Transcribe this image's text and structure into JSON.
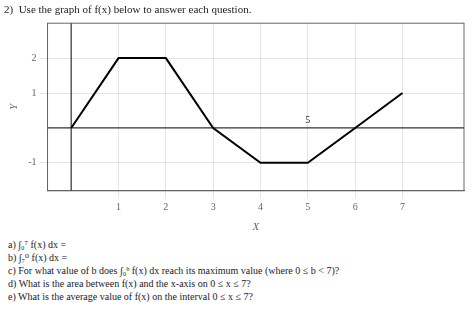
{
  "chart_data": {
    "type": "line",
    "title": "2)  Use the graph of f(x) below to answer each question.",
    "x": [
      0,
      1,
      2,
      3,
      4,
      5,
      6,
      7
    ],
    "values": [
      0,
      2,
      2,
      0,
      -1,
      -1,
      0,
      1
    ],
    "color": "#000000",
    "xlim": [
      -0.5,
      8.3
    ],
    "ylim": [
      -1.8,
      3.0
    ],
    "xticks": [
      1,
      2,
      3,
      4,
      5,
      6,
      7
    ],
    "yticks": [
      -1,
      1,
      2
    ],
    "xlabel": "X",
    "ylabel": "Y",
    "grid": true,
    "annotations": [
      {
        "text": "5",
        "x": 5
      },
      {
        "text": "a)  ∫₀⁷ f(x) dx ="
      },
      {
        "text": "b)  ∫₇⁰ f(x) dx ="
      },
      {
        "text": "c)  For what value of b does ∫₀ᵇ f(x) dx reach its maximum value (where 0 ≤ b < 7)?"
      },
      {
        "text": "d)  What is the area between f(x) and the x-axis on 0 ≤ x ≤ 7?"
      },
      {
        "text": "e)  What is the average value of f(x) on the interval 0 ≤ x ≤ 7?"
      }
    ]
  }
}
